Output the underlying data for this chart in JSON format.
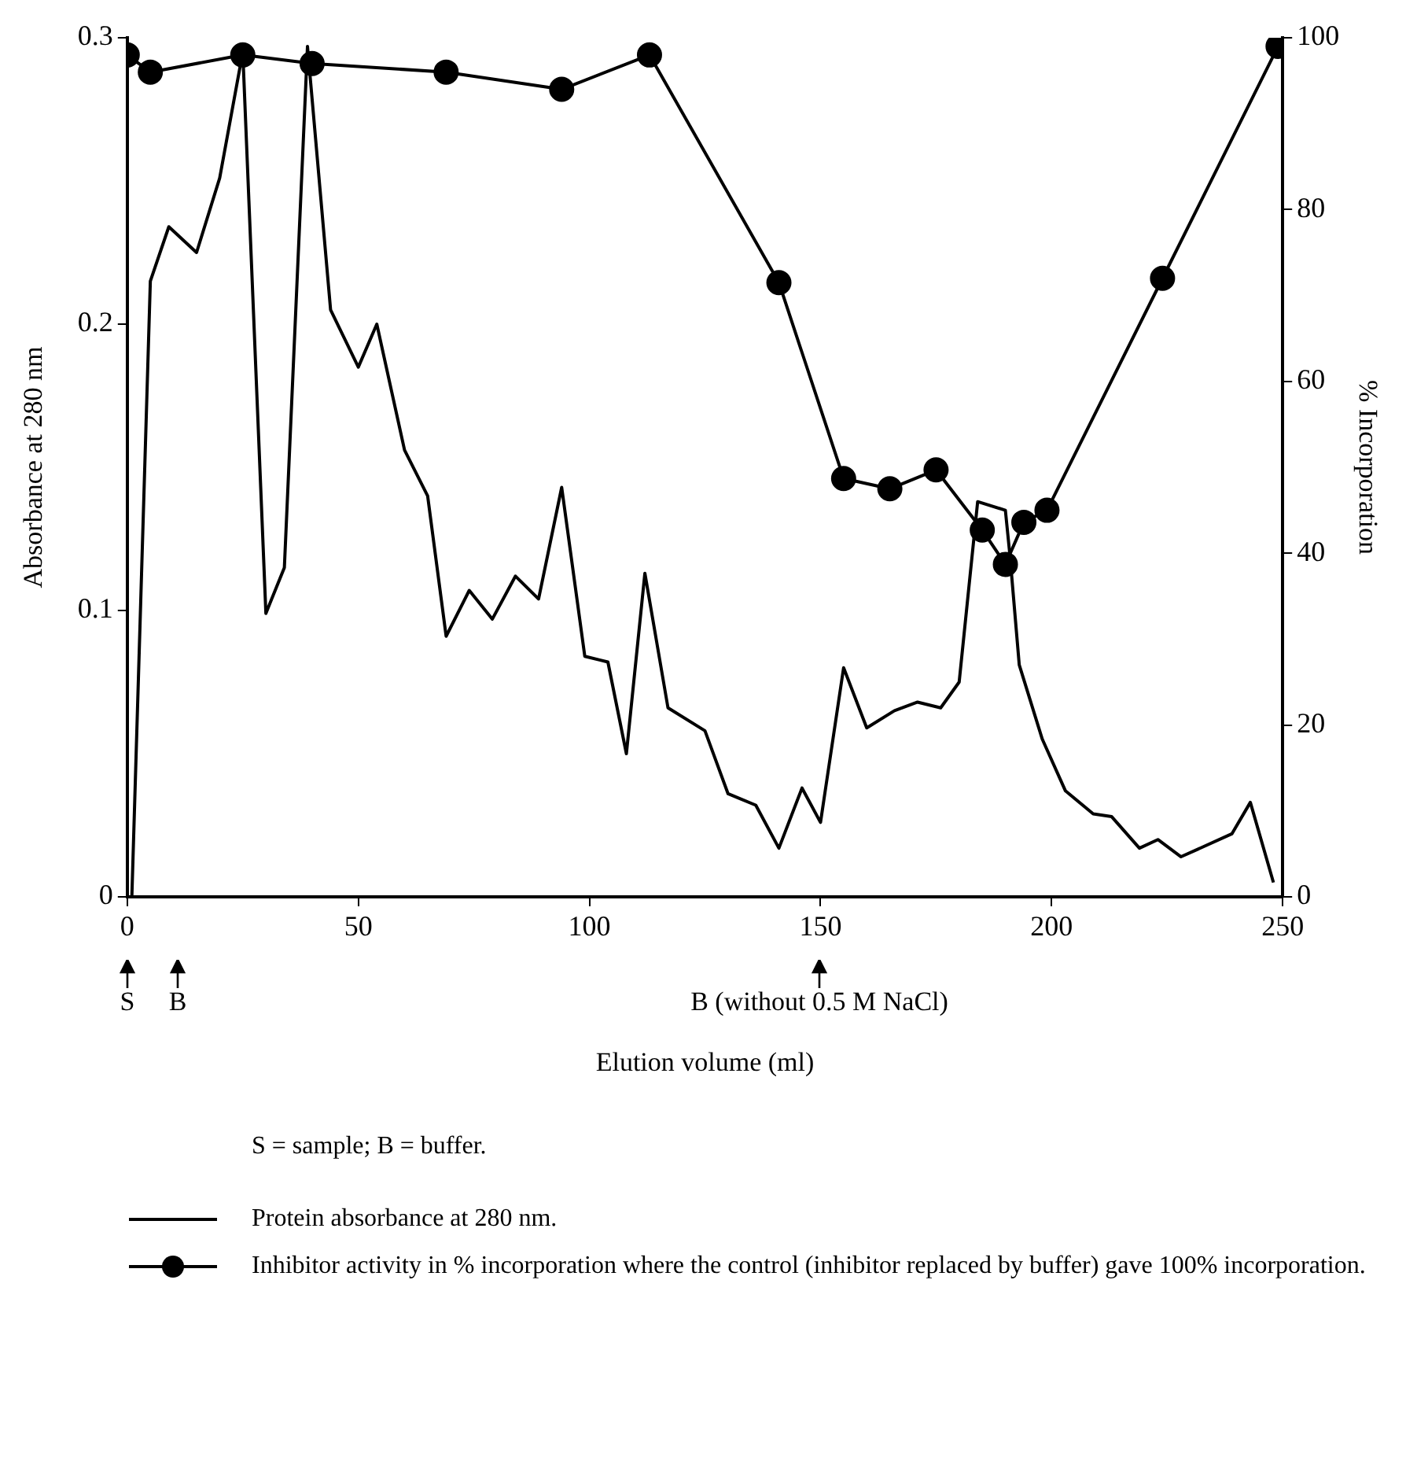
{
  "chart_data": {
    "type": "line",
    "xlabel": "Elution volume (ml)",
    "ylabel": "Absorbance at 280 nm",
    "y2label": "% Incorporation",
    "xlim": [
      0,
      250
    ],
    "xticks": [
      0,
      50,
      100,
      150,
      200,
      250
    ],
    "ylim": [
      0,
      0.3
    ],
    "yticks": [
      0,
      0.1,
      0.2,
      0.3
    ],
    "y2lim": [
      0,
      100
    ],
    "y2ticks": [
      0,
      20,
      40,
      60,
      80,
      100
    ],
    "grid": false,
    "legend": "bottom",
    "series": [
      {
        "name": "Protein absorbance at 280 nm.",
        "color": "#000000",
        "marker": "none",
        "x": [
          1,
          5,
          9,
          15,
          20,
          25,
          30,
          34,
          39,
          44,
          50,
          54,
          60,
          65,
          69,
          74,
          79,
          84,
          89,
          94,
          99,
          104,
          108,
          112,
          117,
          125,
          130,
          136,
          141,
          146,
          150,
          155,
          160,
          166,
          171,
          176,
          180,
          184,
          190,
          191,
          193,
          198,
          203,
          209,
          213,
          219,
          223,
          228,
          239,
          243,
          248
        ],
        "values": [
          0,
          0.215,
          0.234,
          0.225,
          0.251,
          0.295,
          0.099,
          0.115,
          0.297,
          0.205,
          0.185,
          0.2,
          0.156,
          0.14,
          0.091,
          0.107,
          0.097,
          0.112,
          0.104,
          0.143,
          0.084,
          0.082,
          0.05,
          0.113,
          0.066,
          0.058,
          0.036,
          0.032,
          0.017,
          0.038,
          0.026,
          0.08,
          0.059,
          0.065,
          0.068,
          0.066,
          0.075,
          0.138,
          0.135,
          0.119,
          0.081,
          0.055,
          0.037,
          0.029,
          0.028,
          0.017,
          0.02,
          0.014,
          0.022,
          0.033,
          0.005
        ]
      },
      {
        "name": "Inhibitor activity in % incorporation where the control (inhibitor replaced by buffer) gave 100% incorporation.",
        "color": "#000000",
        "marker": "circle",
        "axis": "y2",
        "x": [
          0,
          5,
          25,
          40,
          69,
          94,
          113,
          141,
          155,
          165,
          175,
          185,
          190,
          194,
          199,
          224,
          249
        ],
        "values": [
          98,
          96,
          98,
          97,
          96,
          94,
          98,
          71.5,
          48.7,
          47.5,
          49.7,
          42.7,
          38.7,
          43.6,
          45,
          72,
          99
        ]
      }
    ],
    "annotations": [
      "S",
      "B",
      "B (without 0.5 M NaCl)",
      "S = sample; B = buffer."
    ]
  }
}
